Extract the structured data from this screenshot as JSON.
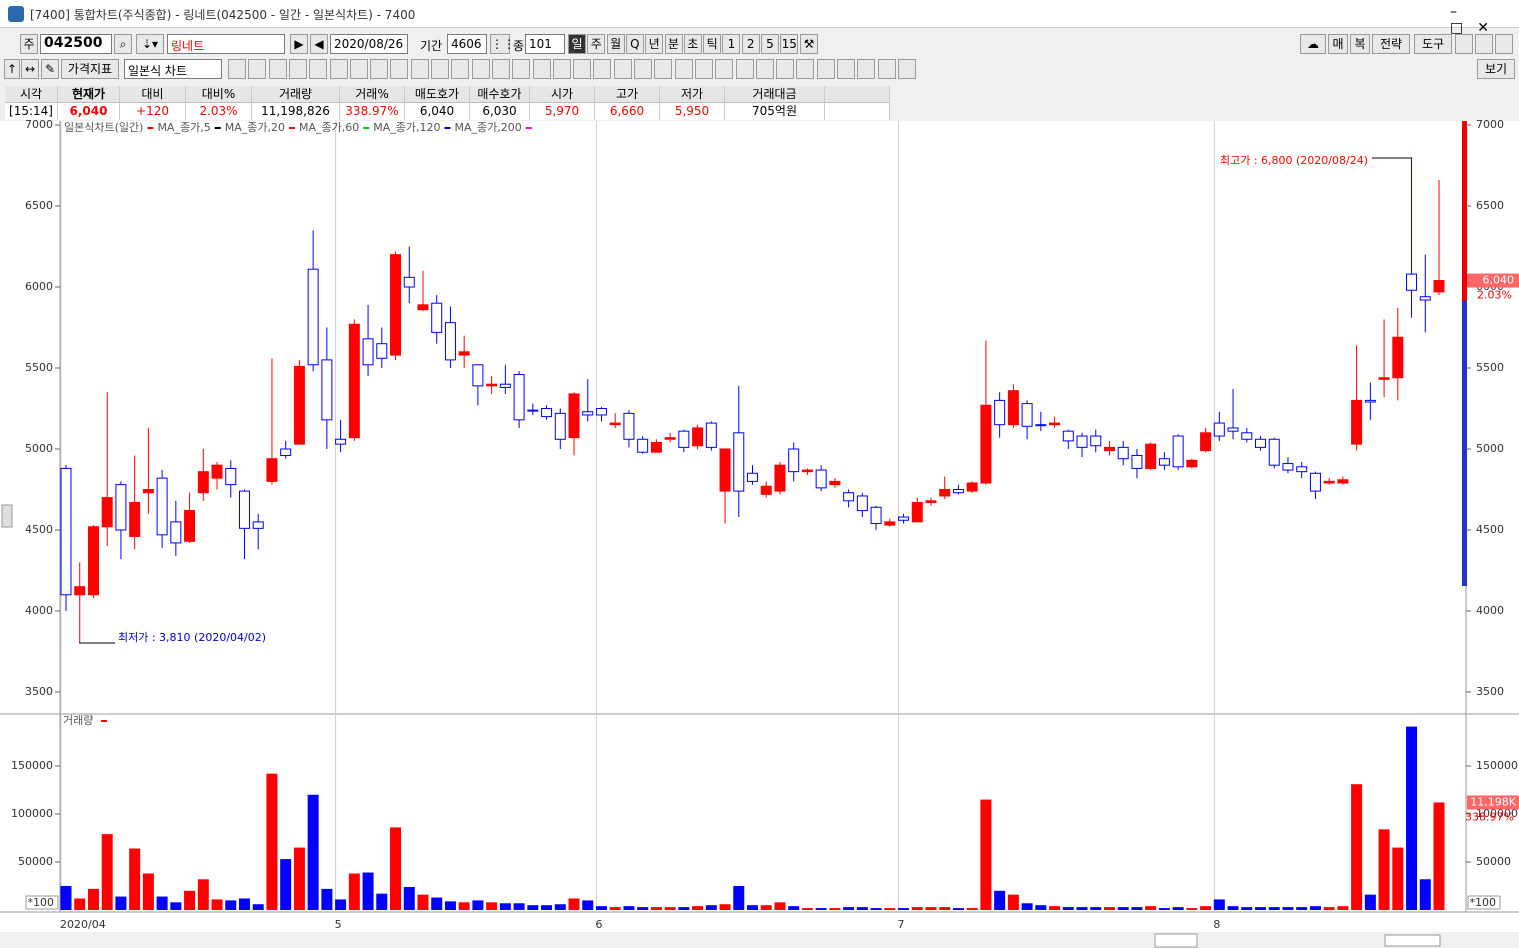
{
  "window": {
    "title": "[7400] 통합차트(주식종합) - 링네트(042500 - 일간 - 일본식차트) - 7400"
  },
  "toolbar": {
    "code_prefix": "주",
    "code": "042500",
    "name": "링네트",
    "date": "2020/08/26",
    "period_label": "기간",
    "period": "4606",
    "count_label": "종",
    "count": "101",
    "periods": [
      "일",
      "주",
      "월",
      "Q",
      "년",
      "분",
      "초",
      "틱",
      "1",
      "2",
      "5",
      "15"
    ],
    "right_buttons": [
      "매",
      "복",
      "전략",
      "도구"
    ],
    "indicator": "가격지표",
    "chart_type": "일본식 차트",
    "view": "보기"
  },
  "quote": {
    "headers": [
      "시각",
      "현재가",
      "대비",
      "대비%",
      "거래량",
      "거래%",
      "매도호가",
      "매수호가",
      "시가",
      "고가",
      "저가",
      "거래대금"
    ],
    "values": [
      "[15:14]",
      "6,040",
      "+120",
      "2.03%",
      "11,198,826",
      "338.97%",
      "6,040",
      "6,030",
      "5,970",
      "6,660",
      "5,950",
      "705억원"
    ]
  },
  "chart_data": [
    {
      "type": "candlestick",
      "title": "일본식차트(일간)",
      "title_color": "#ff0000",
      "legend": [
        {
          "name": "MA_종가,5",
          "color": "#000000"
        },
        {
          "name": "MA_종가,20",
          "color": "#ff0000"
        },
        {
          "name": "MA_종가,60",
          "color": "#00cc00"
        },
        {
          "name": "MA_종가,120",
          "color": "#0000cc"
        },
        {
          "name": "MA_종가,200",
          "color": "#ff00ff"
        }
      ],
      "categories": [
        "2020/04",
        null,
        null,
        null,
        null,
        null,
        null,
        null,
        null,
        null,
        null,
        null,
        null,
        null,
        null,
        null,
        null,
        null,
        null,
        null,
        "5",
        null,
        null,
        null,
        null,
        null,
        null,
        null,
        null,
        null,
        null,
        null,
        null,
        null,
        null,
        null,
        null,
        null,
        null,
        "6",
        null,
        null,
        null,
        null,
        null,
        null,
        null,
        null,
        null,
        null,
        null,
        null,
        null,
        null,
        null,
        null,
        null,
        null,
        null,
        null,
        null,
        "7",
        null,
        null,
        null,
        null,
        null,
        null,
        null,
        null,
        null,
        null,
        null,
        null,
        null,
        null,
        null,
        null,
        null,
        null,
        null,
        null,
        null,
        null,
        "8",
        null,
        null,
        null,
        null,
        null,
        null,
        null,
        null,
        null,
        null,
        null,
        null,
        null,
        null,
        null,
        null
      ],
      "open": [
        4880,
        4100,
        4100,
        4520,
        4780,
        4460,
        4730,
        4820,
        4550,
        4430,
        4730,
        4820,
        4880,
        4740,
        4550,
        4800,
        5000,
        5030,
        6110,
        5550,
        5060,
        5070,
        5680,
        5650,
        5580,
        6060,
        5860,
        5900,
        5780,
        5580,
        5520,
        5390,
        5400,
        5460,
        5240,
        5250,
        5220,
        5070,
        5230,
        5250,
        5150,
        5220,
        5060,
        4980,
        5060,
        5110,
        5020,
        5160,
        4740,
        5100,
        4850,
        4720,
        4740,
        5000,
        4860,
        4870,
        4780,
        4730,
        4710,
        4640,
        4530,
        4580,
        4550,
        4670,
        4710,
        4750,
        4740,
        4790,
        5300,
        5150,
        5280,
        5150,
        5150,
        5110,
        5080,
        5080,
        4990,
        5010,
        4960,
        4880,
        4940,
        5080,
        4890,
        4990,
        5160,
        5130,
        5100,
        5060,
        5060,
        4910,
        4890,
        4850,
        4790,
        4790,
        5030,
        5300,
        5430,
        5440,
        6080,
        5940,
        5970
      ],
      "high": [
        4900,
        4300,
        4530,
        5350,
        4800,
        4960,
        5130,
        4870,
        4680,
        4730,
        5000,
        4920,
        4930,
        4750,
        4600,
        5560,
        5050,
        5550,
        6350,
        5750,
        5180,
        5800,
        5890,
        5750,
        6220,
        6250,
        6100,
        5950,
        5880,
        5700,
        5520,
        5450,
        5520,
        5480,
        5280,
        5270,
        5250,
        5350,
        5430,
        5260,
        5220,
        5240,
        5080,
        5060,
        5100,
        5120,
        5150,
        5170,
        5000,
        5390,
        4900,
        4800,
        4920,
        5040,
        4880,
        4900,
        4820,
        4750,
        4730,
        4650,
        4570,
        4600,
        4700,
        4700,
        4830,
        4780,
        4800,
        5670,
        5350,
        5400,
        5300,
        5230,
        5200,
        5120,
        5100,
        5120,
        5050,
        5050,
        5000,
        5040,
        4980,
        5090,
        4940,
        5130,
        5230,
        5370,
        5130,
        5080,
        5070,
        4950,
        4920,
        4860,
        4820,
        4830,
        5640,
        5410,
        5800,
        5870,
        6800,
        6200,
        6660
      ],
      "low": [
        4000,
        3810,
        4080,
        4400,
        4320,
        4380,
        4600,
        4390,
        4340,
        4420,
        4680,
        4750,
        4700,
        4320,
        4380,
        4780,
        4940,
        5030,
        5480,
        5000,
        4980,
        5050,
        5450,
        5500,
        5550,
        5900,
        5850,
        5650,
        5500,
        5500,
        5270,
        5340,
        5340,
        5130,
        5210,
        5180,
        5000,
        4960,
        5170,
        5170,
        5130,
        5010,
        4970,
        4980,
        5040,
        4980,
        5000,
        4990,
        4540,
        4580,
        4780,
        4700,
        4720,
        4800,
        4840,
        4740,
        4760,
        4640,
        4580,
        4500,
        4520,
        4540,
        4550,
        4650,
        4690,
        4720,
        4730,
        4780,
        5070,
        5130,
        5060,
        5110,
        5130,
        5000,
        4950,
        4980,
        4960,
        4900,
        4820,
        4870,
        4870,
        4870,
        4880,
        4980,
        5050,
        5060,
        5040,
        4990,
        4880,
        4850,
        4820,
        4690,
        4780,
        4780,
        4990,
        5180,
        5320,
        5300,
        5810,
        5720,
        5950
      ],
      "close": [
        4100,
        4150,
        4520,
        4700,
        4500,
        4670,
        4750,
        4470,
        4420,
        4620,
        4860,
        4900,
        4780,
        4510,
        4510,
        4940,
        4960,
        5510,
        5520,
        5180,
        5030,
        5770,
        5520,
        5560,
        6200,
        6000,
        5890,
        5720,
        5550,
        5600,
        5390,
        5400,
        5380,
        5180,
        5240,
        5200,
        5060,
        5340,
        5210,
        5210,
        5160,
        5060,
        4980,
        5040,
        5070,
        5010,
        5130,
        5010,
        5000,
        4740,
        4800,
        4770,
        4900,
        4860,
        4870,
        4760,
        4800,
        4680,
        4620,
        4540,
        4550,
        4560,
        4670,
        4680,
        4750,
        4730,
        4790,
        5270,
        5150,
        5360,
        5140,
        5150,
        5160,
        5050,
        5010,
        5020,
        5010,
        4940,
        4880,
        5030,
        4900,
        4890,
        4930,
        5100,
        5080,
        5110,
        5060,
        5010,
        4900,
        4870,
        4860,
        4740,
        4800,
        4810,
        5300,
        5290,
        5440,
        5690,
        5980,
        5920,
        6040
      ],
      "up_color": "#ff0000",
      "down_color": "#0000ff",
      "ylim": [
        3370,
        7025
      ],
      "yticks": [
        3500,
        4000,
        4500,
        5000,
        5500,
        6000,
        6500,
        7000
      ],
      "annotations": [
        {
          "text": "최고가 : 6,800 (2020/08/24)",
          "value": 6800,
          "color": "#ff0000"
        },
        {
          "text": "최저가 : 3,810 (2020/04/02)",
          "value": 3810,
          "color": "#0000cc"
        }
      ],
      "last_tag": {
        "label": "6,040",
        "change": "2.03%"
      }
    },
    {
      "type": "bar",
      "title": "거래량",
      "title_color": "#ff0000",
      "unit": "*100",
      "values": [
        25000,
        12000,
        22000,
        79000,
        14000,
        64000,
        38000,
        14000,
        8000,
        20000,
        32000,
        11000,
        10000,
        12000,
        6000,
        142000,
        53000,
        65000,
        120000,
        22000,
        11000,
        38000,
        39000,
        17000,
        86000,
        24000,
        16000,
        13000,
        9000,
        8000,
        10000,
        8000,
        7000,
        7000,
        5000,
        5000,
        6000,
        12000,
        10000,
        4000,
        3000,
        4000,
        3000,
        3000,
        3000,
        3000,
        4000,
        5000,
        6000,
        25000,
        5000,
        5000,
        8000,
        4000,
        2000,
        2000,
        2000,
        3000,
        3000,
        2000,
        2000,
        2000,
        3000,
        3000,
        3000,
        2000,
        2000,
        115000,
        20000,
        16000,
        7000,
        5000,
        4000,
        3000,
        3000,
        3000,
        3000,
        3000,
        3000,
        4000,
        2000,
        3000,
        2000,
        4000,
        11000,
        4000,
        3000,
        3000,
        3000,
        3000,
        3000,
        4000,
        3000,
        4000,
        131000,
        16000,
        84000,
        65000,
        191000,
        32000,
        111988
      ],
      "ylim": [
        0,
        201000
      ],
      "yticks": [
        50000,
        100000,
        150000
      ],
      "last_tag": {
        "label": "11,198K",
        "change": "338.97%"
      }
    }
  ]
}
